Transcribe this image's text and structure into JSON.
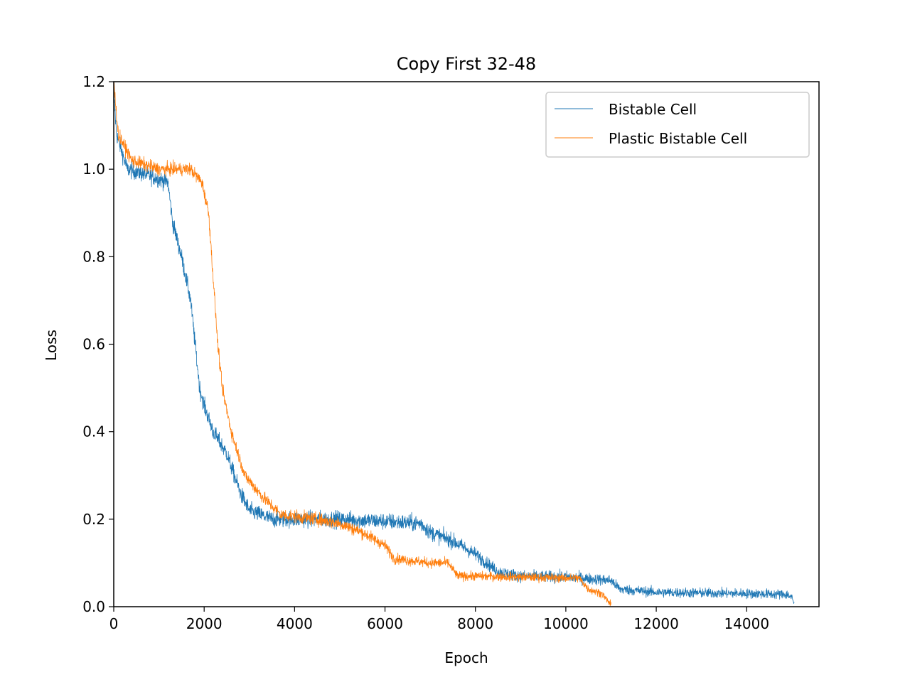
{
  "chart_data": {
    "type": "line",
    "title": "Copy First 32-48",
    "xlabel": "Epoch",
    "ylabel": "Loss",
    "xlim": [
      0,
      15600
    ],
    "ylim": [
      0,
      1.2
    ],
    "xticks": [
      0,
      2000,
      4000,
      6000,
      8000,
      10000,
      12000,
      14000
    ],
    "xtick_labels": [
      "0",
      "2000",
      "4000",
      "6000",
      "8000",
      "10000",
      "12000",
      "14000"
    ],
    "yticks": [
      0.0,
      0.2,
      0.4,
      0.6,
      0.8,
      1.0,
      1.2
    ],
    "ytick_labels": [
      "0.0",
      "0.2",
      "0.4",
      "0.6",
      "0.8",
      "1.0",
      "1.2"
    ],
    "grid": false,
    "legend_position": "top-right",
    "series": [
      {
        "name": "Bistable Cell",
        "color": "#1f77b4",
        "noise": 0.018,
        "points": [
          [
            0,
            1.18
          ],
          [
            60,
            1.08
          ],
          [
            300,
            1.0
          ],
          [
            800,
            0.985
          ],
          [
            1200,
            0.97
          ],
          [
            1300,
            0.88
          ],
          [
            1500,
            0.8
          ],
          [
            1700,
            0.7
          ],
          [
            1800,
            0.6
          ],
          [
            1900,
            0.5
          ],
          [
            2000,
            0.46
          ],
          [
            2200,
            0.4
          ],
          [
            2500,
            0.35
          ],
          [
            2800,
            0.26
          ],
          [
            3000,
            0.22
          ],
          [
            3500,
            0.2
          ],
          [
            4000,
            0.2
          ],
          [
            5000,
            0.2
          ],
          [
            6000,
            0.195
          ],
          [
            6800,
            0.19
          ],
          [
            7000,
            0.17
          ],
          [
            7500,
            0.15
          ],
          [
            8000,
            0.12
          ],
          [
            8500,
            0.08
          ],
          [
            9000,
            0.07
          ],
          [
            10000,
            0.068
          ],
          [
            11000,
            0.06
          ],
          [
            11200,
            0.04
          ],
          [
            12000,
            0.033
          ],
          [
            14000,
            0.03
          ],
          [
            14900,
            0.028
          ],
          [
            15000,
            0.02
          ],
          [
            15050,
            0.008
          ]
        ]
      },
      {
        "name": "Plastic Bistable Cell",
        "color": "#ff7f0e",
        "noise": 0.014,
        "points": [
          [
            0,
            1.2
          ],
          [
            100,
            1.08
          ],
          [
            400,
            1.02
          ],
          [
            1000,
            1.0
          ],
          [
            1700,
            1.0
          ],
          [
            1950,
            0.97
          ],
          [
            2100,
            0.9
          ],
          [
            2200,
            0.75
          ],
          [
            2300,
            0.6
          ],
          [
            2400,
            0.5
          ],
          [
            2600,
            0.4
          ],
          [
            2900,
            0.3
          ],
          [
            3300,
            0.25
          ],
          [
            3700,
            0.21
          ],
          [
            4500,
            0.2
          ],
          [
            5000,
            0.19
          ],
          [
            5500,
            0.17
          ],
          [
            6000,
            0.14
          ],
          [
            6200,
            0.11
          ],
          [
            7000,
            0.1
          ],
          [
            7400,
            0.1
          ],
          [
            7600,
            0.07
          ],
          [
            8000,
            0.07
          ],
          [
            10300,
            0.065
          ],
          [
            10500,
            0.04
          ],
          [
            10800,
            0.03
          ],
          [
            10950,
            0.01
          ],
          [
            11000,
            0.004
          ]
        ]
      }
    ]
  }
}
